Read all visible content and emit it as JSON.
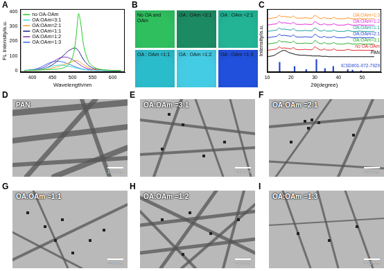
{
  "panel_labels": [
    "A",
    "B",
    "C",
    "D",
    "E",
    "F",
    "G",
    "H",
    "I"
  ],
  "chart_data": [
    {
      "type": "line",
      "x_label": "Wavelength/nm",
      "y_label": "FL Intensity/a.u.",
      "x": [
        380,
        390,
        400,
        410,
        420,
        430,
        440,
        450,
        460,
        470,
        480,
        490,
        500,
        505,
        510,
        515,
        520,
        525,
        530,
        540,
        550,
        560,
        570,
        580,
        590,
        600,
        610,
        620
      ],
      "series": [
        {
          "name": "no OA-OAm",
          "color": "#22cc22",
          "values": [
            2,
            2,
            3,
            3,
            4,
            5,
            6,
            8,
            10,
            14,
            22,
            40,
            90,
            150,
            260,
            390,
            330,
            220,
            140,
            60,
            30,
            15,
            8,
            5,
            3,
            2,
            2,
            1
          ]
        },
        {
          "name": "OA:OAm=3:1",
          "color": "#33dddd",
          "values": [
            1,
            2,
            3,
            5,
            8,
            14,
            22,
            30,
            36,
            38,
            35,
            30,
            24,
            20,
            17,
            14,
            11,
            9,
            7,
            4,
            2,
            1,
            1,
            1,
            0,
            0,
            0,
            0
          ]
        },
        {
          "name": "OA:OAm=2:1",
          "color": "#ff9933",
          "values": [
            1,
            1,
            2,
            3,
            5,
            8,
            12,
            18,
            25,
            33,
            42,
            52,
            62,
            66,
            68,
            64,
            55,
            45,
            36,
            20,
            10,
            5,
            3,
            2,
            1,
            1,
            0,
            0
          ]
        },
        {
          "name": "OA:OAm=1:1",
          "color": "#1a1a80",
          "values": [
            1,
            2,
            3,
            5,
            8,
            14,
            25,
            40,
            60,
            85,
            110,
            135,
            150,
            155,
            150,
            135,
            110,
            85,
            65,
            35,
            18,
            9,
            5,
            3,
            2,
            1,
            1,
            0
          ]
        },
        {
          "name": "OA:OAm=1:2",
          "color": "#7b2fb0",
          "values": [
            1,
            2,
            4,
            8,
            14,
            24,
            40,
            58,
            75,
            88,
            93,
            88,
            75,
            66,
            56,
            46,
            37,
            28,
            21,
            11,
            6,
            3,
            2,
            1,
            1,
            0,
            0,
            0
          ]
        },
        {
          "name": "OA:OAm=1:3",
          "color": "#3366ff",
          "values": [
            2,
            3,
            6,
            12,
            22,
            36,
            50,
            60,
            64,
            62,
            55,
            45,
            34,
            28,
            23,
            18,
            14,
            10,
            8,
            4,
            2,
            1,
            1,
            0,
            0,
            0,
            0,
            0
          ]
        }
      ],
      "xlim": [
        370,
        630
      ],
      "xticks": [
        400,
        450,
        500,
        550,
        600
      ],
      "ylim": [
        -10,
        420
      ],
      "yticks": [
        0,
        100,
        200,
        300,
        400
      ],
      "legend": "upper left"
    },
    {
      "type": "line",
      "x_label": "2θ(degree)",
      "y_label": "Intensity/a.u.",
      "x": [
        10,
        11,
        12,
        13,
        14,
        15,
        16,
        17,
        18,
        19,
        20,
        21,
        22,
        23,
        24,
        25,
        26,
        27,
        28,
        29,
        30,
        31,
        32,
        33,
        34,
        35,
        36,
        37,
        38,
        39,
        40,
        41,
        42,
        43,
        44,
        45,
        46,
        47,
        48,
        49,
        50,
        51,
        52,
        53,
        54,
        55
      ],
      "series": [
        {
          "name": "ICSD#01-072-7929",
          "type": "bar",
          "color": "#2244cc",
          "x": [
            15.2,
            21.5,
            26.4,
            30.7,
            34.3,
            37.8,
            43.9,
            45.9,
            49.5
          ],
          "values": [
            14,
            8,
            4,
            18,
            5,
            8,
            4,
            3,
            2
          ]
        },
        {
          "name": "PAN",
          "color": "#000000",
          "values": [
            22,
            22.5,
            23,
            24,
            26,
            28,
            30,
            31,
            30,
            28,
            27,
            26,
            25,
            24.5,
            24,
            24,
            24,
            23.5,
            23.5,
            23,
            23,
            23,
            23,
            22.5,
            22.5,
            22.5,
            22,
            22,
            22,
            22,
            22,
            22,
            22,
            22,
            22,
            22,
            22,
            22,
            22,
            22,
            22,
            22,
            22,
            22,
            22,
            22
          ]
        },
        {
          "name": "no OA-OAm",
          "color": "#e02020",
          "values": [
            31,
            31.5,
            32,
            32.5,
            33,
            36,
            34,
            34.5,
            34,
            33.5,
            33,
            35,
            32.5,
            32,
            32,
            32,
            32.5,
            32,
            32,
            32,
            36,
            34,
            32,
            31.5,
            33,
            31.5,
            31.5,
            31.5,
            33,
            31.5,
            31,
            31,
            31,
            31.5,
            32.5,
            31.5,
            31,
            31,
            31,
            31.5,
            31,
            31,
            31,
            31,
            31,
            31
          ]
        },
        {
          "name": "OA:OAm=3:1",
          "color": "#22aa22",
          "values": [
            40,
            40.5,
            41,
            41.5,
            42,
            45,
            43,
            43.5,
            43,
            42.5,
            42,
            44,
            41.5,
            41,
            41,
            41,
            41.5,
            41,
            41,
            41,
            45,
            43,
            41,
            40.5,
            42,
            40.5,
            40.5,
            40.5,
            42,
            40.5,
            40,
            40,
            40,
            40.5,
            41.5,
            40.5,
            40,
            40,
            40,
            40.5,
            40,
            40,
            40,
            40,
            40,
            40
          ]
        },
        {
          "name": "OA:OAm=2:1",
          "color": "#1a3fd0",
          "values": [
            49,
            49.5,
            50,
            50.5,
            51,
            54,
            52,
            52.5,
            52,
            51.5,
            51,
            53,
            50.5,
            50,
            50,
            50,
            50.5,
            50,
            50,
            50,
            54,
            52,
            50,
            49.5,
            51,
            49.5,
            49.5,
            49.5,
            51,
            49.5,
            49,
            49,
            49,
            49.5,
            50.5,
            49.5,
            49,
            49,
            49,
            49.5,
            49,
            49,
            49,
            49,
            49,
            49
          ]
        },
        {
          "name": "OA:OAm=1:1",
          "color": "#119999",
          "values": [
            58,
            58.5,
            59,
            59.5,
            60,
            63,
            61,
            61.5,
            61,
            60.5,
            60,
            62,
            59.5,
            59,
            59,
            59,
            59.5,
            59,
            59,
            59,
            63,
            61,
            59,
            58.5,
            60,
            58.5,
            58.5,
            58.5,
            60,
            58.5,
            58,
            58,
            58,
            58.5,
            59.5,
            58.5,
            58,
            58,
            58,
            58.5,
            58,
            58,
            58,
            58,
            58,
            58
          ]
        },
        {
          "name": "OA:OAm=1:2",
          "color": "#dd22dd",
          "values": [
            67,
            67.5,
            68,
            68.5,
            69,
            72,
            70,
            70.5,
            70,
            69.5,
            69,
            71,
            68.5,
            68,
            68,
            68,
            68.5,
            68,
            68,
            68,
            72,
            70,
            68,
            67.5,
            69,
            67.5,
            67.5,
            67.5,
            69,
            67.5,
            67,
            67,
            67,
            67.5,
            68.5,
            67.5,
            67,
            67,
            67,
            67.5,
            67,
            67,
            67,
            67,
            67,
            67
          ]
        },
        {
          "name": "OA:OAm=1:3",
          "color": "#ff8c1a",
          "values": [
            76,
            76.5,
            77,
            77.5,
            78,
            81,
            79,
            79.5,
            79,
            78.5,
            78,
            80,
            77.5,
            77,
            77,
            77,
            77.5,
            77,
            77,
            77,
            81,
            79,
            77,
            76.5,
            78,
            76.5,
            76.5,
            76.5,
            78,
            76.5,
            76,
            76,
            76,
            76.5,
            77.5,
            76.5,
            76,
            76,
            76,
            76.5,
            76,
            76,
            76,
            76,
            76,
            76
          ]
        }
      ],
      "xlim": [
        10,
        58
      ],
      "xticks": [
        10,
        20,
        30,
        40,
        50
      ],
      "ylim": [
        0,
        90
      ],
      "tick_labels": "x"
    }
  ],
  "photos": [
    {
      "label": "No OA and OAm",
      "color": "#2fbf5f"
    },
    {
      "label": "OA : OAm =3:1",
      "color": "#1c8a62"
    },
    {
      "label": "OA : OAm =2:1",
      "color": "#22b495"
    },
    {
      "label": "OA : OAm =1:1",
      "color": "#2bbccc"
    },
    {
      "label": "OA : OAm =1:2",
      "color": "#44cce4"
    },
    {
      "label": "OA : OAm =1:3",
      "color": "#2150dc"
    }
  ],
  "micrographs": [
    {
      "label": "PAN",
      "scale_bar": "100 nm"
    },
    {
      "label": "OA:OAm =3:1",
      "scale_bar": "200 nm"
    },
    {
      "label": "OA:OAm =2:1",
      "scale_bar": "200 nm"
    },
    {
      "label": "OA:OAm =1:1",
      "scale_bar": "100 nm"
    },
    {
      "label": "OA:OAm =1:2",
      "scale_bar": "200 nm"
    },
    {
      "label": "OA:OAm =1:3",
      "scale_bar": "200 nm"
    }
  ]
}
